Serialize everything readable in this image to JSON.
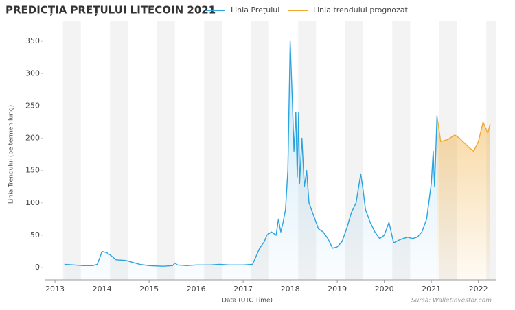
{
  "chart_data": {
    "type": "line",
    "title": "PREDICȚIA PREȚULUI LITECOIN 2021",
    "xlabel": "Data (UTC Time)",
    "ylabel": "Linia Trendului (pe termen lung)",
    "source": "Sursă: WalletInvestor.com",
    "xlim": [
      2012.78,
      2022.37
    ],
    "ylim": [
      -19,
      382
    ],
    "xticks": [
      2013,
      2014,
      2015,
      2016,
      2017,
      2018,
      2019,
      2020,
      2021,
      2022
    ],
    "yticks": [
      0,
      50,
      100,
      150,
      200,
      250,
      300,
      350
    ],
    "series": [
      {
        "name": "Linia Prețului",
        "color": "#2aa3e0",
        "x": [
          2013.2,
          2013.4,
          2013.6,
          2013.8,
          2013.9,
          2013.95,
          2014.0,
          2014.1,
          2014.2,
          2014.3,
          2014.5,
          2014.6,
          2014.8,
          2015.0,
          2015.3,
          2015.5,
          2015.55,
          2015.6,
          2015.8,
          2016.0,
          2016.3,
          2016.5,
          2016.7,
          2017.0,
          2017.2,
          2017.35,
          2017.45,
          2017.5,
          2017.6,
          2017.7,
          2017.75,
          2017.8,
          2017.85,
          2017.9,
          2017.95,
          2018.0,
          2018.05,
          2018.08,
          2018.12,
          2018.15,
          2018.18,
          2018.2,
          2018.25,
          2018.3,
          2018.35,
          2018.4,
          2018.5,
          2018.6,
          2018.7,
          2018.8,
          2018.9,
          2019.0,
          2019.1,
          2019.2,
          2019.3,
          2019.4,
          2019.5,
          2019.55,
          2019.6,
          2019.7,
          2019.8,
          2019.9,
          2020.0,
          2020.1,
          2020.2,
          2020.3,
          2020.4,
          2020.5,
          2020.6,
          2020.7,
          2020.8,
          2020.9,
          2021.0,
          2021.04,
          2021.07,
          2021.12
        ],
        "values": [
          5,
          4,
          3,
          3,
          5,
          15,
          25,
          23,
          18,
          12,
          11,
          9,
          5,
          3,
          2,
          3,
          7,
          4,
          3,
          4,
          4,
          5,
          4,
          4,
          5,
          30,
          40,
          50,
          55,
          50,
          75,
          55,
          70,
          90,
          150,
          350,
          250,
          180,
          240,
          140,
          240,
          130,
          200,
          125,
          150,
          100,
          80,
          60,
          55,
          45,
          30,
          32,
          40,
          60,
          85,
          100,
          145,
          120,
          90,
          70,
          55,
          45,
          50,
          70,
          38,
          42,
          45,
          47,
          45,
          47,
          55,
          75,
          130,
          180,
          125,
          235
        ]
      },
      {
        "name": "Linia trendului prognozat",
        "color": "#f0a830",
        "x": [
          2021.12,
          2021.2,
          2021.35,
          2021.5,
          2021.6,
          2021.7,
          2021.8,
          2021.9,
          2022.0,
          2022.1,
          2022.2,
          2022.25
        ],
        "values": [
          235,
          195,
          198,
          205,
          200,
          193,
          186,
          180,
          195,
          225,
          208,
          222
        ]
      }
    ]
  }
}
